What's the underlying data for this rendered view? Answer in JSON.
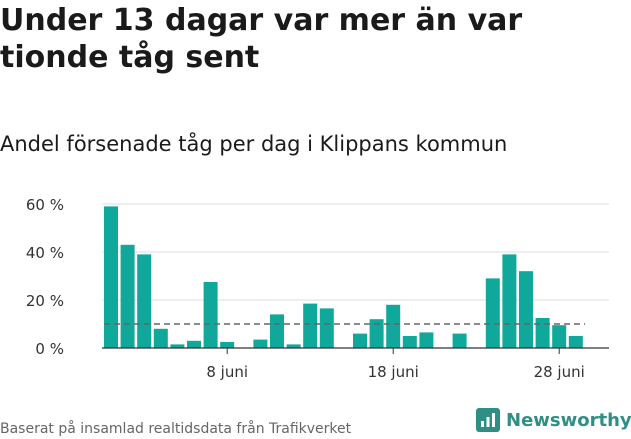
{
  "title": "Under 13 dagar var mer än var tionde tåg sent",
  "subtitle": "Andel försenade tåg per dag i Klippans kommun",
  "source": "Baserat på insamlad realtidsdata från Trafikverket",
  "brand": "Newsworthy",
  "colors": {
    "bar": "#0fa89a",
    "reference": "#666666",
    "grid": "#dddddd",
    "brand": "#2f8f85"
  },
  "chart_data": {
    "type": "bar",
    "x_unit": "day (June)",
    "x": [
      1,
      2,
      3,
      4,
      5,
      6,
      7,
      8,
      9,
      10,
      11,
      12,
      13,
      14,
      15,
      16,
      17,
      18,
      19,
      20,
      21,
      22,
      23,
      24,
      25,
      26,
      27,
      28,
      29,
      30
    ],
    "values": [
      59,
      43,
      39,
      8,
      1.5,
      3,
      27.5,
      2.5,
      null,
      3.5,
      14,
      1.5,
      18.5,
      16.5,
      null,
      6,
      12,
      18,
      5,
      6.5,
      null,
      6,
      null,
      29,
      39,
      32,
      12.5,
      9.5,
      5,
      null
    ],
    "reference_line": 10,
    "ylim": [
      0,
      60
    ],
    "yticks": [
      0,
      20,
      40,
      60
    ],
    "ytick_labels": [
      "0 %",
      "20 %",
      "40 %",
      "60 %"
    ],
    "xticks": [
      8,
      18,
      28
    ],
    "xtick_labels": [
      "8 juni",
      "18 juni",
      "28 juni"
    ],
    "grid": true,
    "legend": "none"
  }
}
